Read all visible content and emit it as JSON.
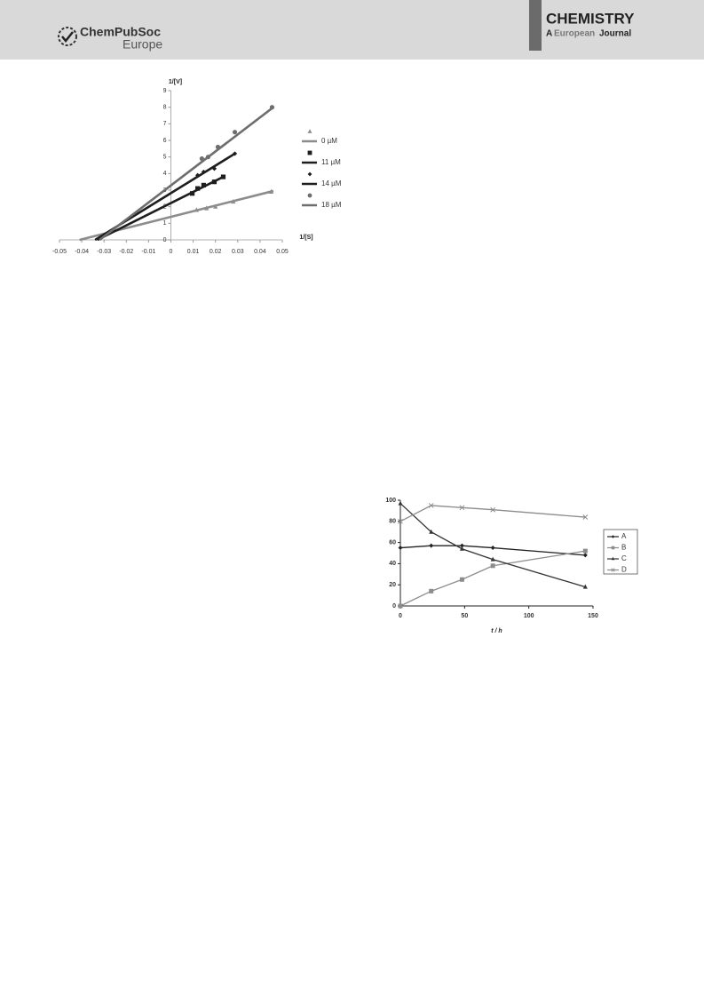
{
  "header": {
    "publisher": "ChemPubSoc",
    "publisher_sub": "Europe",
    "journal": "CHEMISTRY",
    "journal_a": "A",
    "journal_b": "European",
    "journal_c": "Journal"
  },
  "chart_data": [
    {
      "type": "scatter",
      "x_label": "1/[S]",
      "y_label": "1/[V]",
      "xlim": [
        -0.05,
        0.05
      ],
      "xticks": [
        -0.05,
        -0.04,
        -0.03,
        -0.02,
        -0.01,
        0,
        0.01,
        0.02,
        0.03,
        0.04,
        0.05
      ],
      "ylim": [
        0,
        9
      ],
      "yticks": [
        0,
        1,
        2,
        3,
        4,
        5,
        6,
        7,
        8,
        9
      ],
      "series": [
        {
          "name": "0 µM",
          "color": "#8c8c8c",
          "marker": "triangle",
          "x": [
            0.0115,
            0.016,
            0.02,
            0.028,
            0.045
          ],
          "values": [
            1.8,
            1.9,
            2.0,
            2.3,
            2.9
          ],
          "fit_x": [
            -0.041,
            0.046
          ],
          "fit_y": [
            0,
            2.95
          ]
        },
        {
          "name": "11 µM",
          "color": "#1e1e1e",
          "marker": "square",
          "x": [
            0.0096,
            0.012,
            0.0147,
            0.0195,
            0.0235
          ],
          "values": [
            2.8,
            3.1,
            3.3,
            3.5,
            3.8
          ],
          "fit_x": [
            -0.033,
            0.0235
          ],
          "fit_y": [
            0,
            3.8
          ]
        },
        {
          "name": "14 µM",
          "color": "#1e1e1e",
          "marker": "diamond",
          "x": [
            0.012,
            0.0147,
            0.0195,
            0.0287
          ],
          "values": [
            3.9,
            4.1,
            4.3,
            5.2
          ],
          "fit_x": [
            -0.034,
            0.0287
          ],
          "fit_y": [
            0,
            5.2
          ]
        },
        {
          "name": "18 µM",
          "color": "#6e6e6e",
          "marker": "circle",
          "x": [
            0.0139,
            0.0167,
            0.0211,
            0.0287,
            0.0454
          ],
          "values": [
            4.9,
            5.0,
            5.6,
            6.5,
            8.0
          ],
          "fit_x": [
            -0.032,
            0.046
          ],
          "fit_y": [
            0,
            8.0
          ]
        }
      ]
    },
    {
      "type": "line",
      "x_label": "t / h",
      "xlim": [
        0,
        150
      ],
      "xticks": [
        0,
        50,
        100,
        150
      ],
      "ylim": [
        0,
        100
      ],
      "yticks": [
        0,
        20,
        40,
        60,
        80,
        100
      ],
      "x": [
        0,
        24,
        48,
        72,
        144
      ],
      "series": [
        {
          "name": "A",
          "color": "#222222",
          "marker": "diamond",
          "values": [
            55,
            57,
            57,
            55,
            48
          ]
        },
        {
          "name": "B",
          "color": "#8c8c8c",
          "marker": "square",
          "values": [
            0,
            14,
            25,
            38,
            52
          ]
        },
        {
          "name": "C",
          "color": "#333333",
          "marker": "triangle",
          "values": [
            97,
            70,
            54,
            44,
            18
          ]
        },
        {
          "name": "D",
          "color": "#8c8c8c",
          "marker": "cross",
          "values": [
            80,
            95,
            93,
            91,
            84
          ]
        }
      ]
    }
  ]
}
